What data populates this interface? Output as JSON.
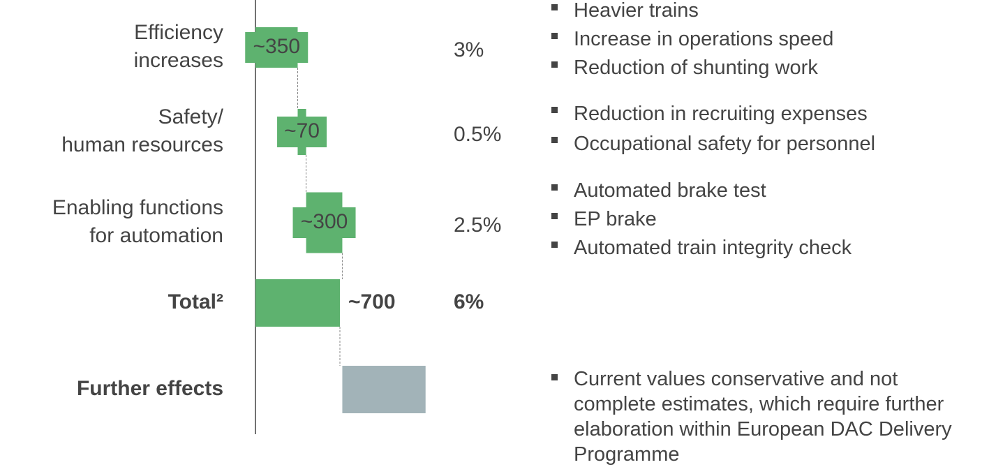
{
  "chart_data": {
    "type": "waterfall",
    "categories": [
      [
        "Efficiency",
        "increases"
      ],
      [
        "Safety/",
        "human resources"
      ],
      [
        "Enabling functions",
        "for automation"
      ],
      [
        "Total²"
      ],
      [
        "Further effects"
      ]
    ],
    "values": [
      350,
      70,
      300,
      700,
      690
    ],
    "value_labels": [
      "~350",
      "~70",
      "~300",
      "~700",
      null
    ],
    "shares": [
      3,
      0.5,
      2.5,
      6,
      null
    ],
    "share_labels": [
      "3%",
      "0.5%",
      "2.5%",
      "6%",
      null
    ],
    "totals": [
      3
    ],
    "bold": [
      false,
      false,
      false,
      true,
      true
    ],
    "colors": [
      "#5eb26f",
      "#5eb26f",
      "#5eb26f",
      "#5eb26f",
      "#a2b3b8"
    ],
    "notes": [
      [
        "Heavier trains",
        "Increase in operations speed",
        "Reduction of shunting work"
      ],
      [
        "Reduction in recruiting expenses",
        "Occupational safety for personnel"
      ],
      [
        "Automated brake test",
        "EP brake",
        "Automated train integrity check"
      ],
      [],
      [
        "Current values conservative and not complete estimates, which require further elaboration within European DAC Delivery Programme"
      ]
    ]
  }
}
